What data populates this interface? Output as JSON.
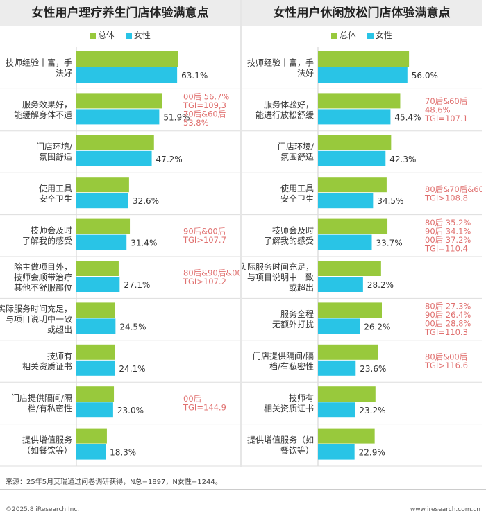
{
  "colors": {
    "overall": "#98c93c",
    "female": "#29c4e6",
    "annotation": "#e0706f"
  },
  "legend": {
    "overall": "总体",
    "female": "女性"
  },
  "footer": {
    "source": "来源：25年5月艾瑞通过问卷调研获得，N总=1897，N女性=1244。",
    "copyright": "©2025.8 iResearch Inc.",
    "website": "www.iresearch.com.cn"
  },
  "chart_data": [
    {
      "type": "bar",
      "title": "女性用户理疗养生门店体验满意点",
      "categories": [
        [
          "技师经验丰富，手",
          "法好"
        ],
        [
          "服务效果好，",
          "能缓解身体不适"
        ],
        [
          "门店环境/",
          "氛围舒适"
        ],
        [
          "使用工具",
          "安全卫生"
        ],
        [
          "技师会及时",
          "了解我的感受"
        ],
        [
          "除主做项目外，",
          "技师会顺带治疗",
          "其他不舒服部位"
        ],
        [
          "实际服务时间充足，",
          "与项目说明中一致",
          "或超出"
        ],
        [
          "技师有",
          "相关资质证书"
        ],
        [
          "门店提供隔间/隔",
          "档/有私密性"
        ],
        [
          "提供增值服务",
          "（如餐饮等）"
        ]
      ],
      "series": [
        {
          "name": "总体",
          "values": [
            63.8,
            53.5,
            48.6,
            33.0,
            33.5,
            26.5,
            24.0,
            24.2,
            23.5,
            19.1
          ]
        },
        {
          "name": "女性",
          "values": [
            63.1,
            51.9,
            47.2,
            32.6,
            31.4,
            27.1,
            24.5,
            24.1,
            23.0,
            18.3
          ]
        }
      ],
      "data_labels": [
        "63.1%",
        "51.9%",
        "47.2%",
        "32.6%",
        "31.4%",
        "27.1%",
        "24.5%",
        "24.1%",
        "23.0%",
        "18.3%"
      ],
      "annotations": [
        {
          "index": 1,
          "lines": [
            "00后 56.7%",
            "TGI=109,3",
            "70后&60后",
            "53.8%"
          ]
        },
        {
          "index": 4,
          "lines": [
            "90后&00后",
            "TGI>107.7"
          ]
        },
        {
          "index": 5,
          "lines": [
            "80后&90后&00后",
            "TGI>107.2"
          ]
        },
        {
          "index": 8,
          "lines": [
            "00后",
            "TGI=144.9"
          ]
        }
      ],
      "xlim": [
        0,
        100
      ],
      "legend": "top-center"
    },
    {
      "type": "bar",
      "title": "女性用户休闲放松门店体验满意点",
      "categories": [
        [
          "技师经验丰富，手",
          "法好"
        ],
        [
          "服务体验好，",
          "能进行放松舒缓"
        ],
        [
          "门店环境/",
          "氛围舒适"
        ],
        [
          "使用工具",
          "安全卫生"
        ],
        [
          "技师会及时",
          "了解我的感受"
        ],
        [
          "实际服务时间充足，",
          "与项目说明中一致",
          "或超出"
        ],
        [
          "服务全程",
          "无额外打扰"
        ],
        [
          "门店提供隔间/隔",
          "档/有私密性"
        ],
        [
          "技师有",
          "相关资质证书"
        ],
        [
          "提供增值服务（如",
          "餐饮等）"
        ]
      ],
      "series": [
        {
          "name": "总体",
          "values": [
            57.0,
            51.5,
            45.8,
            43.0,
            43.5,
            39.5,
            40.0,
            37.5,
            36.0,
            35.5
          ]
        },
        {
          "name": "女性",
          "values": [
            56.0,
            45.4,
            42.3,
            34.5,
            33.7,
            28.2,
            26.2,
            23.6,
            23.2,
            22.9
          ]
        }
      ],
      "data_labels": [
        "56.0%",
        "45.4%",
        "42.3%",
        "34.5%",
        "33.7%",
        "28.2%",
        "26.2%",
        "23.6%",
        "23.2%",
        "22.9%"
      ],
      "annotations": [
        {
          "index": 1,
          "lines": [
            "70后&60后",
            "48.6%",
            "TGI=107.1"
          ]
        },
        {
          "index": 3,
          "lines": [
            "80后&70后&60后",
            "TGI>108.8"
          ]
        },
        {
          "index": 4,
          "lines": [
            "80后 35.2%",
            "90后 34.1%",
            "00后 37.2%",
            "TGI=110.4"
          ]
        },
        {
          "index": 6,
          "lines": [
            "80后 27.3%",
            "90后 26.4%",
            "00后 28.8%",
            "TGI=110.3"
          ]
        },
        {
          "index": 7,
          "lines": [
            "80后&00后",
            "TGI>116.6"
          ]
        }
      ],
      "xlim": [
        0,
        100
      ],
      "legend": "top-center"
    }
  ]
}
